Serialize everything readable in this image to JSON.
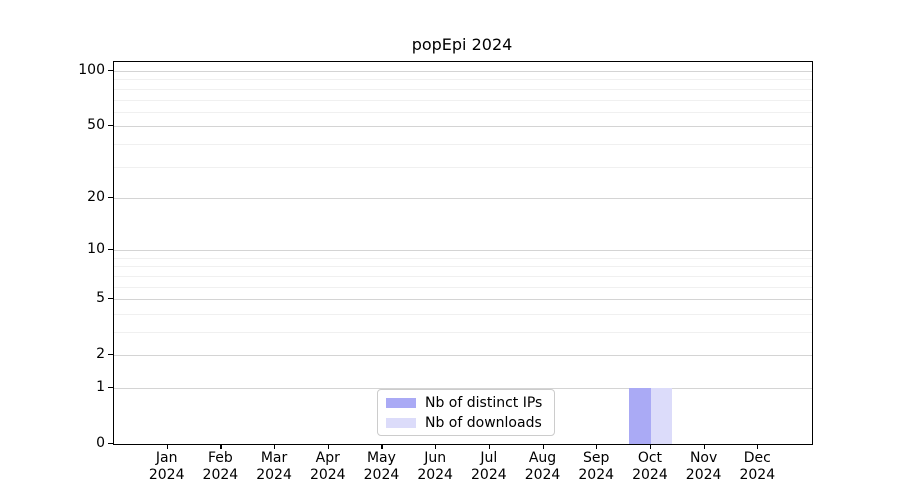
{
  "chart_data": {
    "type": "bar",
    "title": "popEpi 2024",
    "categories": [
      "Jan",
      "Feb",
      "Mar",
      "Apr",
      "May",
      "Jun",
      "Jul",
      "Aug",
      "Sep",
      "Oct",
      "Nov",
      "Dec"
    ],
    "category_year": "2024",
    "series": [
      {
        "name": "Nb of distinct IPs",
        "color": "#aaaaf5",
        "values": [
          0,
          0,
          0,
          0,
          0,
          0,
          0,
          0,
          0,
          1,
          0,
          0
        ]
      },
      {
        "name": "Nb of downloads",
        "color": "#dcdcfa",
        "values": [
          0,
          0,
          0,
          0,
          0,
          0,
          0,
          0,
          0,
          1,
          0,
          0
        ]
      }
    ],
    "y_axis": {
      "scale": "log1p",
      "major_ticks": [
        100,
        50,
        20,
        10,
        5,
        2,
        1,
        0
      ],
      "minor_ticks": [
        90,
        80,
        70,
        60,
        40,
        30,
        9,
        8,
        7,
        6,
        4,
        3
      ],
      "max": 112,
      "min": 0
    },
    "legend": {
      "position": "lower center inside",
      "entries": [
        "Nb of distinct IPs",
        "Nb of downloads"
      ]
    },
    "grid": "horizontal",
    "colors": {
      "major_grid": "#d4d4d4",
      "minor_grid": "#f0f0f0",
      "axis": "#000000",
      "legend_border": "#cccccc",
      "background": "#ffffff"
    }
  }
}
